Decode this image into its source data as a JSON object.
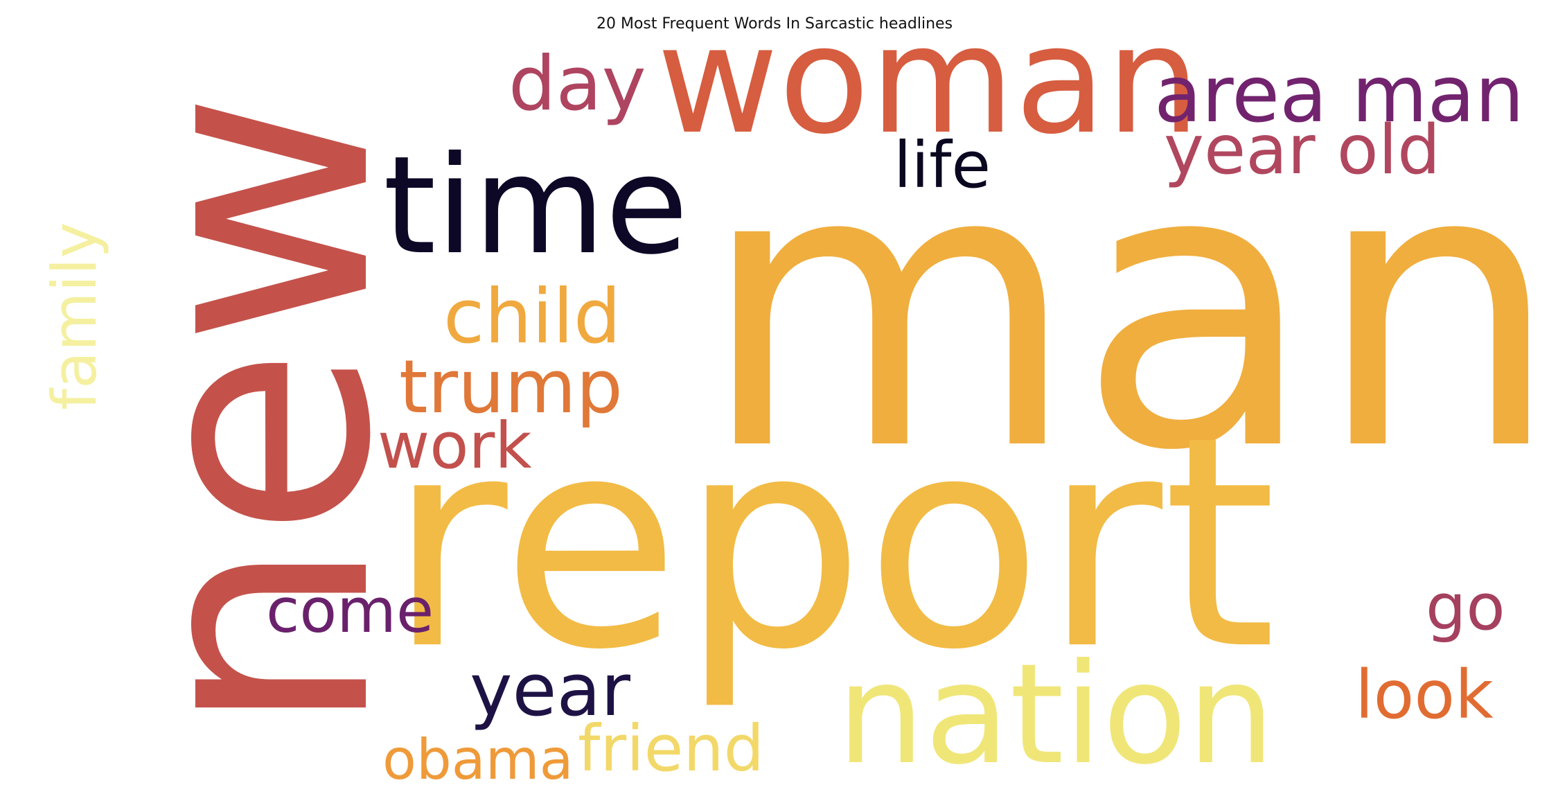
{
  "chart_data": {
    "type": "wordcloud",
    "title": "20 Most Frequent Words In Sarcastic headlines",
    "colormap": "inferno",
    "background": "#ffffff",
    "words": [
      {
        "text": "man",
        "color": "#f0ae3e"
      },
      {
        "text": "new",
        "color": "#c4524b"
      },
      {
        "text": "report",
        "color": "#f2bb45"
      },
      {
        "text": "woman",
        "color": "#d65d40"
      },
      {
        "text": "time",
        "color": "#0c0826"
      },
      {
        "text": "nation",
        "color": "#f0e678"
      },
      {
        "text": "area man",
        "color": "#72236e"
      },
      {
        "text": "year old",
        "color": "#b0475f"
      },
      {
        "text": "day",
        "color": "#ae4460"
      },
      {
        "text": "life",
        "color": "#0a0720"
      },
      {
        "text": "family",
        "color": "#f4f0a0"
      },
      {
        "text": "child",
        "color": "#f0a93e"
      },
      {
        "text": "trump",
        "color": "#e07838"
      },
      {
        "text": "work",
        "color": "#c2504c"
      },
      {
        "text": "year",
        "color": "#1e1245"
      },
      {
        "text": "come",
        "color": "#6a216c"
      },
      {
        "text": "go",
        "color": "#a5405f"
      },
      {
        "text": "look",
        "color": "#e16c32"
      },
      {
        "text": "obama",
        "color": "#ef9a39"
      },
      {
        "text": "friend",
        "color": "#f2d868"
      }
    ]
  }
}
